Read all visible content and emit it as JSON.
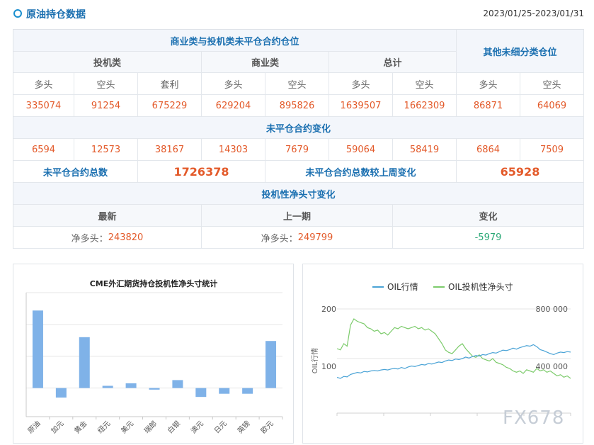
{
  "header": {
    "title": "原油持仓数据",
    "date_range": "2023/01/25-2023/01/31"
  },
  "table": {
    "section1_title": "商业类与投机类未平仓合约仓位",
    "other_title": "其他未细分类仓位",
    "groups": [
      "投机类",
      "商业类",
      "总计"
    ],
    "col_labels": [
      "多头",
      "空头",
      "套利",
      "多头",
      "空头",
      "多头",
      "空头",
      "多头",
      "空头"
    ],
    "positions": [
      "335074",
      "91254",
      "675229",
      "629204",
      "895826",
      "1639507",
      "1662309",
      "86871",
      "64069"
    ],
    "change_title": "未平仓合约变化",
    "changes": [
      "6594",
      "12573",
      "38167",
      "14303",
      "7679",
      "59064",
      "58419",
      "6864",
      "7509"
    ],
    "total_label": "未平仓合约总数",
    "total_value": "1726378",
    "weekly_label": "未平仓合约总数较上周变化",
    "weekly_value": "65928",
    "net_title": "投机性净头寸变化",
    "net_cols": [
      "最新",
      "上一期",
      "变化"
    ],
    "latest_prefix": "净多头：",
    "latest_value": "243820",
    "prev_prefix": "净多头：",
    "prev_value": "249799",
    "delta": "-5979"
  },
  "chart_data": [
    {
      "type": "bar",
      "title": "CME外汇期货持仓投机性净头寸统计",
      "categories": [
        "原油",
        "加元",
        "黄金",
        "纽元",
        "美元",
        "瑞郎",
        "白银",
        "澳元",
        "日元",
        "英镑",
        "欧元"
      ],
      "values": [
        243820,
        -30000,
        160000,
        7000,
        15000,
        -5000,
        25000,
        -28000,
        -18000,
        -18000,
        148000
      ],
      "ylim": [
        -90000,
        300000
      ],
      "color": "#7fb2e8"
    },
    {
      "type": "line",
      "legend": [
        "OIL行情",
        "OIL投机性净头寸"
      ],
      "colors": [
        "#4aa3d6",
        "#7ccb6b"
      ],
      "ylabel": "OIL行情",
      "left_ticks": [
        "200",
        "100"
      ],
      "right_ticks": [
        "800 000",
        "400 000"
      ],
      "series": [
        {
          "name": "OIL行情",
          "axis": "left",
          "values": [
            62,
            60,
            64,
            63,
            68,
            70,
            72,
            71,
            74,
            73,
            75,
            76,
            75,
            77,
            78,
            77,
            79,
            80,
            79,
            82,
            80,
            83,
            85,
            84,
            86,
            88,
            87,
            90,
            89,
            91,
            93,
            92,
            95,
            97,
            96,
            99,
            98,
            100,
            103,
            101,
            104,
            106,
            105,
            108,
            107,
            110,
            112,
            111,
            114,
            117,
            116,
            118,
            121,
            119,
            122,
            124,
            126,
            125,
            128,
            124,
            118,
            116,
            113,
            110,
            108,
            111,
            113,
            112,
            114,
            113
          ]
        },
        {
          "name": "OIL投机性净头寸",
          "axis": "right",
          "values": [
            480000,
            470000,
            520000,
            500000,
            670000,
            720000,
            700000,
            690000,
            680000,
            650000,
            640000,
            620000,
            630000,
            600000,
            610000,
            590000,
            620000,
            650000,
            640000,
            660000,
            650000,
            640000,
            650000,
            660000,
            640000,
            650000,
            630000,
            640000,
            620000,
            600000,
            560000,
            520000,
            470000,
            450000,
            440000,
            470000,
            500000,
            520000,
            480000,
            450000,
            420000,
            410000,
            430000,
            400000,
            390000,
            380000,
            400000,
            370000,
            360000,
            350000,
            330000,
            320000,
            300000,
            290000,
            300000,
            280000,
            310000,
            300000,
            290000,
            320000,
            300000,
            310000,
            290000,
            300000,
            280000,
            260000,
            270000,
            250000,
            260000,
            240000
          ]
        }
      ]
    }
  ],
  "watermark": "FX678"
}
